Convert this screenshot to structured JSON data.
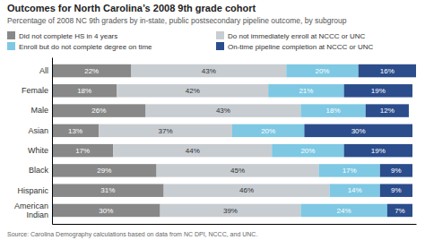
{
  "chart_data": {
    "type": "bar",
    "orientation": "horizontal",
    "stacked": true,
    "data_labels": true,
    "tick_labels": "y",
    "grid": false,
    "title": "Outcomes for North Carolina’s 2008 9th grade cohort",
    "subtitle": "Percentage of 2008 NC 9th graders by in-state, public postsecondary pipeline outcome, by subgroup",
    "annotations": [
      "Source: Carolina Demography calculations based on data from NC DPI, NCCC, and UNC."
    ],
    "categories": [
      "All",
      "Female",
      "Male",
      "Asian",
      "White",
      "Black",
      "Hispanic",
      "American\nIndian"
    ],
    "xlim": [
      0,
      101
    ],
    "series": [
      {
        "name": "Did not complete HS in 4 years",
        "color": "#888888",
        "values": [
          22,
          18,
          26,
          13,
          17,
          29,
          31,
          30
        ],
        "value_labels": [
          "22%",
          "18%",
          "26%",
          "13%",
          "17%",
          "29%",
          "31%",
          "30%"
        ]
      },
      {
        "name": "Do not immediately enroll at NCCC or UNC",
        "color": "#c8cdd2",
        "values": [
          43,
          42,
          43,
          37,
          44,
          45,
          46,
          39
        ],
        "value_labels": [
          "43%",
          "42%",
          "43%",
          "37%",
          "44%",
          "45%",
          "46%",
          "39%"
        ]
      },
      {
        "name": "Enroll but do not complete degree on time",
        "color": "#7ec8e3",
        "values": [
          20,
          21,
          18,
          20,
          20,
          17,
          14,
          24
        ],
        "value_labels": [
          "20%",
          "21%",
          "18%",
          "20%",
          "20%",
          "17%",
          "14%",
          "24%"
        ]
      },
      {
        "name": "On-time pipeline completion at NCCC or UNC",
        "color": "#2b4d8c",
        "values": [
          16,
          19,
          12,
          30,
          19,
          9,
          9,
          7
        ],
        "value_labels": [
          "16%",
          "19%",
          "12%",
          "30%",
          "19%",
          "9%",
          "9%",
          "7%"
        ]
      }
    ]
  }
}
